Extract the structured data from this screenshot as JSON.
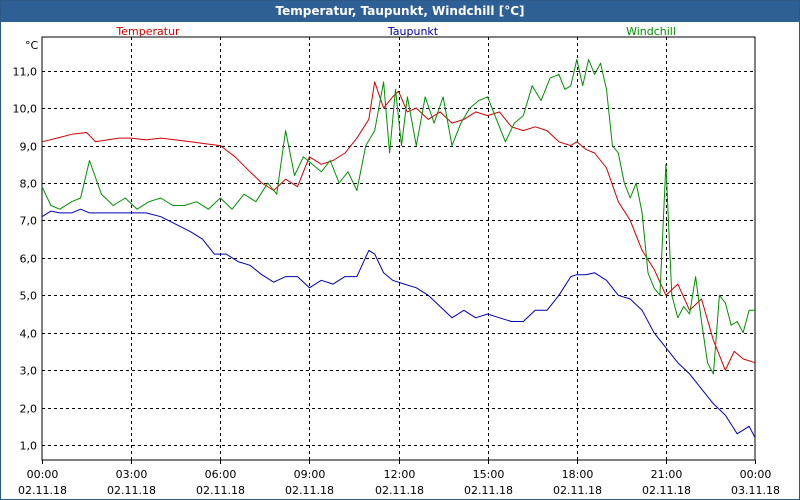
{
  "chart_data": {
    "type": "line",
    "title": "Temperatur, Taupunkt, Windchill [°C]",
    "ylabel": "°C",
    "ylim": [
      0.6,
      11.9
    ],
    "yticks": [
      1.0,
      2.0,
      3.0,
      4.0,
      5.0,
      6.0,
      7.0,
      8.0,
      9.0,
      10.0,
      11.0
    ],
    "ytick_labels": [
      "1,0",
      "2,0",
      "3,0",
      "4,0",
      "5,0",
      "6,0",
      "7,0",
      "8,0",
      "9,0",
      "10,0",
      "11,0"
    ],
    "xlim": [
      0,
      24
    ],
    "xticks": [
      0,
      3,
      6,
      9,
      12,
      15,
      18,
      21,
      24
    ],
    "xtick_times": [
      "00:00",
      "03:00",
      "06:00",
      "09:00",
      "12:00",
      "15:00",
      "18:00",
      "21:00",
      "00:00"
    ],
    "xtick_dates": [
      "02.11.18",
      "02.11.18",
      "02.11.18",
      "02.11.18",
      "02.11.18",
      "02.11.18",
      "02.11.18",
      "02.11.18",
      "03.11.18"
    ],
    "grid": true,
    "series": [
      {
        "name": "Temperatur",
        "color": "#d00000",
        "x": [
          0,
          0.5,
          1,
          1.5,
          1.8,
          2.2,
          2.6,
          3,
          3.5,
          4,
          4.5,
          5,
          5.5,
          6,
          6.5,
          7,
          7.4,
          7.8,
          8.2,
          8.6,
          9,
          9.4,
          9.8,
          10.2,
          10.6,
          11,
          11.2,
          11.5,
          11.8,
          12,
          12.3,
          12.6,
          13,
          13.4,
          13.8,
          14.2,
          14.6,
          15,
          15.4,
          15.8,
          16.2,
          16.6,
          17,
          17.4,
          17.8,
          18,
          18.3,
          18.6,
          19,
          19.4,
          19.8,
          20.2,
          20.6,
          21,
          21.4,
          21.8,
          22.2,
          22.6,
          23,
          23.3,
          23.6,
          24
        ],
        "values": [
          9.1,
          9.2,
          9.3,
          9.35,
          9.1,
          9.15,
          9.2,
          9.2,
          9.15,
          9.2,
          9.15,
          9.1,
          9.05,
          9.0,
          8.7,
          8.3,
          8.0,
          7.8,
          8.1,
          7.9,
          8.7,
          8.5,
          8.6,
          8.8,
          9.2,
          9.7,
          10.7,
          10.0,
          10.3,
          10.45,
          9.9,
          10.0,
          9.7,
          9.9,
          9.6,
          9.7,
          9.9,
          9.8,
          9.9,
          9.5,
          9.4,
          9.5,
          9.4,
          9.1,
          9.0,
          9.1,
          8.9,
          8.8,
          8.4,
          7.5,
          7.0,
          6.2,
          5.7,
          5.0,
          5.3,
          4.6,
          4.9,
          3.8,
          3.0,
          3.5,
          3.3,
          3.2
        ]
      },
      {
        "name": "Taupunkt",
        "color": "#0000b4",
        "x": [
          0,
          0.3,
          0.6,
          1,
          1.3,
          1.6,
          2,
          2.5,
          3,
          3.5,
          4,
          4.5,
          5,
          5.4,
          5.8,
          6.2,
          6.6,
          7,
          7.4,
          7.8,
          8.2,
          8.6,
          9,
          9.4,
          9.8,
          10.2,
          10.6,
          11,
          11.2,
          11.5,
          11.8,
          12.2,
          12.6,
          13,
          13.4,
          13.8,
          14.2,
          14.6,
          15,
          15.4,
          15.8,
          16.2,
          16.6,
          17,
          17.4,
          17.8,
          18,
          18.3,
          18.6,
          19,
          19.4,
          19.8,
          20.2,
          20.6,
          21,
          21.4,
          21.8,
          22.2,
          22.6,
          23,
          23.4,
          23.8,
          24
        ],
        "values": [
          7.1,
          7.25,
          7.2,
          7.2,
          7.3,
          7.2,
          7.2,
          7.2,
          7.2,
          7.2,
          7.1,
          6.9,
          6.7,
          6.5,
          6.1,
          6.1,
          5.9,
          5.8,
          5.55,
          5.35,
          5.5,
          5.5,
          5.2,
          5.4,
          5.3,
          5.5,
          5.5,
          6.2,
          6.1,
          5.6,
          5.4,
          5.3,
          5.2,
          5.0,
          4.7,
          4.4,
          4.6,
          4.4,
          4.5,
          4.4,
          4.3,
          4.3,
          4.6,
          4.6,
          5.0,
          5.5,
          5.55,
          5.55,
          5.6,
          5.4,
          5.0,
          4.9,
          4.6,
          4.0,
          3.6,
          3.2,
          2.9,
          2.5,
          2.1,
          1.8,
          1.3,
          1.5,
          1.2
        ]
      },
      {
        "name": "Windchill",
        "color": "#009000",
        "x": [
          0,
          0.3,
          0.6,
          1,
          1.3,
          1.6,
          2,
          2.4,
          2.8,
          3.2,
          3.6,
          4,
          4.4,
          4.8,
          5.2,
          5.6,
          6,
          6.4,
          6.8,
          7.2,
          7.6,
          7.9,
          8.2,
          8.5,
          8.8,
          9.1,
          9.4,
          9.7,
          10,
          10.3,
          10.6,
          10.9,
          11.2,
          11.5,
          11.7,
          11.9,
          12.1,
          12.3,
          12.6,
          12.9,
          13.2,
          13.5,
          13.8,
          14.1,
          14.4,
          14.7,
          15,
          15.3,
          15.6,
          15.9,
          16.2,
          16.5,
          16.8,
          17.1,
          17.4,
          17.6,
          17.8,
          18,
          18.2,
          18.4,
          18.6,
          18.8,
          19,
          19.2,
          19.4,
          19.6,
          19.8,
          20,
          20.2,
          20.4,
          20.6,
          20.8,
          21,
          21.2,
          21.4,
          21.6,
          21.8,
          22,
          22.2,
          22.4,
          22.6,
          22.8,
          23,
          23.2,
          23.4,
          23.6,
          23.8,
          24
        ],
        "values": [
          7.9,
          7.4,
          7.3,
          7.5,
          7.6,
          8.6,
          7.7,
          7.4,
          7.6,
          7.3,
          7.5,
          7.6,
          7.4,
          7.4,
          7.5,
          7.3,
          7.6,
          7.3,
          7.7,
          7.5,
          8.0,
          7.7,
          9.4,
          8.2,
          8.7,
          8.5,
          8.3,
          8.6,
          8.0,
          8.3,
          7.8,
          9.0,
          9.4,
          10.7,
          8.8,
          10.5,
          9.0,
          10.3,
          9.0,
          10.3,
          9.6,
          10.3,
          9.0,
          9.6,
          10.0,
          10.2,
          10.3,
          9.7,
          9.1,
          9.6,
          9.8,
          10.6,
          10.2,
          10.8,
          10.9,
          10.5,
          10.6,
          11.3,
          10.6,
          11.3,
          10.9,
          11.2,
          10.5,
          9.0,
          8.8,
          8.0,
          7.6,
          8.0,
          7.2,
          5.6,
          5.2,
          5.0,
          8.5,
          5.0,
          4.4,
          4.7,
          4.5,
          5.5,
          4.3,
          3.2,
          2.9,
          5.0,
          4.8,
          4.2,
          4.3,
          4.0,
          4.6,
          4.6
        ]
      }
    ]
  }
}
